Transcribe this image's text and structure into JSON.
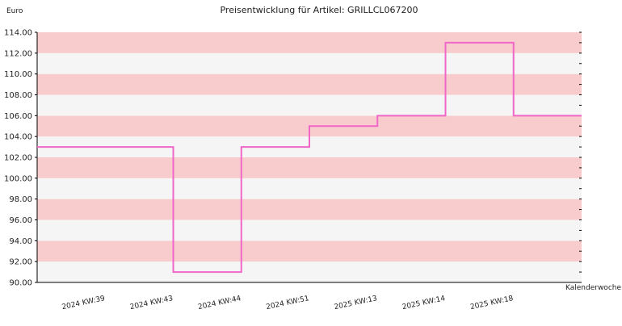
{
  "colors": {
    "band_dark": "#f8cccc",
    "band_light": "#f5f5f5",
    "line": "#f067c8",
    "axis": "#000000",
    "text": "#222222",
    "background": "#ffffff"
  },
  "chart_data": {
    "type": "line",
    "step": true,
    "title": "Preisentwicklung für Artikel: GRILLCL067200",
    "ylabel": "Euro",
    "xlabel": "Kalenderwoche",
    "ylim": [
      90.0,
      114.0
    ],
    "y_ticks": [
      "90.00",
      "92.00",
      "94.00",
      "96.00",
      "98.00",
      "100.00",
      "102.00",
      "104.00",
      "106.00",
      "108.00",
      "110.00",
      "112.00",
      "114.00"
    ],
    "categories": [
      "2024 KW:39",
      "2024 KW:43",
      "2024 KW:44",
      "2024 KW:51",
      "2025 KW:13",
      "2025 KW:14",
      "2025 KW:18"
    ],
    "values": [
      103.0,
      91.0,
      103.0,
      105.0,
      106.0,
      113.0,
      106.0
    ],
    "grid": false,
    "legend": "none",
    "horizontal_bands": true
  }
}
